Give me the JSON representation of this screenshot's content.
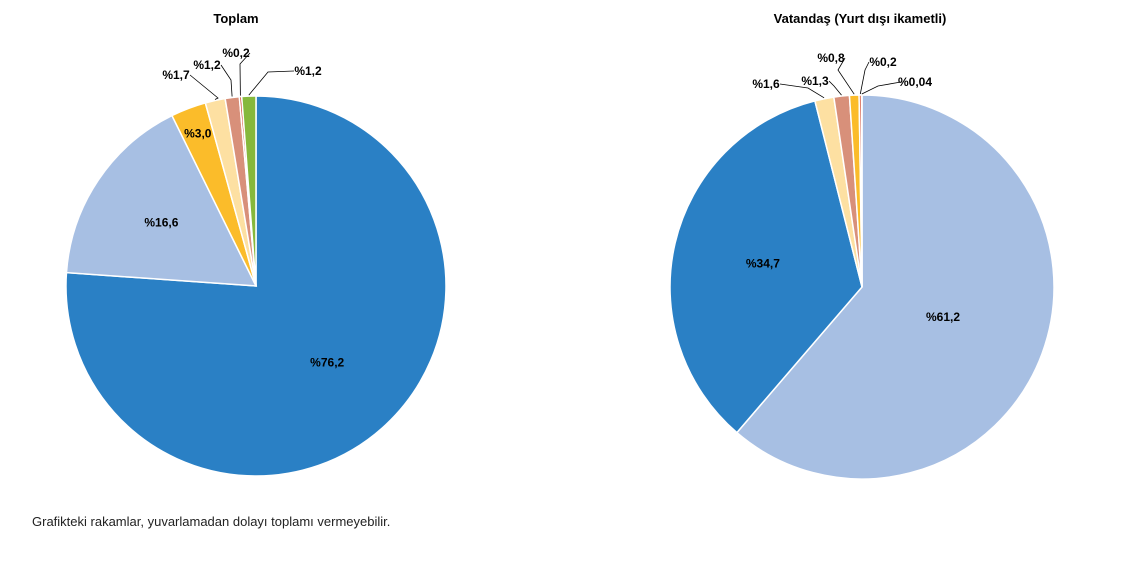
{
  "chart_data": [
    {
      "type": "pie",
      "title": "Toplam",
      "start": "12 o'clock",
      "direction": "clockwise",
      "slices": [
        {
          "value": 76.2,
          "label": "%76,2",
          "color": "#2a80c5"
        },
        {
          "value": 16.6,
          "label": "%16,6",
          "color": "#a7bfe3"
        },
        {
          "value": 3.0,
          "label": "%3,0",
          "color": "#fbbc2a"
        },
        {
          "value": 1.7,
          "label": "%1,7",
          "color": "#fde0a2"
        },
        {
          "value": 1.2,
          "label": "%1,2",
          "color": "#d8907a"
        },
        {
          "value": 0.2,
          "label": "%0,2",
          "color": "#d0442a"
        },
        {
          "value": 1.2,
          "label": "%1,2",
          "color": "#86b83c"
        }
      ]
    },
    {
      "type": "pie",
      "title": "Vatandaş (Yurt dışı ikametli)",
      "start": "12 o'clock",
      "direction": "clockwise",
      "slices": [
        {
          "value": 61.2,
          "label": "%61,2",
          "color": "#a7bfe3"
        },
        {
          "value": 34.7,
          "label": "%34,7",
          "color": "#2a80c5"
        },
        {
          "value": 1.6,
          "label": "%1,6",
          "color": "#fde0a2"
        },
        {
          "value": 1.3,
          "label": "%1,3",
          "color": "#d8907a"
        },
        {
          "value": 0.8,
          "label": "%0,8",
          "color": "#fbbc2a"
        },
        {
          "value": 0.2,
          "label": "%0,2",
          "color": "#d0442a"
        },
        {
          "value": 0.04,
          "label": "%0,04",
          "color": "#86b83c"
        }
      ]
    }
  ],
  "note": "Grafikteki rakamlar, yuvarlamadan dolayı toplamı vermeyebilir."
}
